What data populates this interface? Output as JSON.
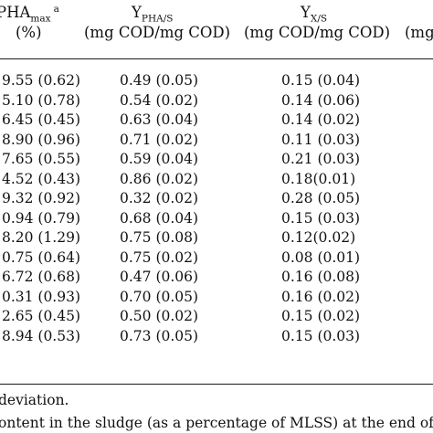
{
  "table": {
    "headers": {
      "col1_main": "PHA",
      "col1_sub": "max",
      "col1_sup": "a",
      "col1_unit": "(%)",
      "col2_main": "Y",
      "col2_sub": "PHA/S",
      "col2_unit": "(mg COD/mg COD)",
      "col3_main": "Y",
      "col3_sub": "X/S",
      "col3_unit": "(mg COD/mg COD)",
      "col4_unit": "(mg"
    },
    "rows": [
      {
        "pha": "9.55 (0.62)",
        "ypha": "0.49 (0.05)",
        "yx": "0.15 (0.04)"
      },
      {
        "pha": "5.10 (0.78)",
        "ypha": "0.54 (0.02)",
        "yx": "0.14 (0.06)"
      },
      {
        "pha": "6.45 (0.45)",
        "ypha": "0.63 (0.04)",
        "yx": "0.14 (0.02)"
      },
      {
        "pha": "8.90 (0.96)",
        "ypha": "0.71 (0.02)",
        "yx": "0.11 (0.03)"
      },
      {
        "pha": "7.65 (0.55)",
        "ypha": "0.59 (0.04)",
        "yx": "0.21 (0.03)"
      },
      {
        "pha": "4.52 (0.43)",
        "ypha": "0.86 (0.02)",
        "yx": "0.18(0.01)"
      },
      {
        "pha": "9.32 (0.92)",
        "ypha": "0.32 (0.02)",
        "yx": "0.28 (0.05)"
      },
      {
        "pha": "0.94 (0.79)",
        "ypha": "0.68 (0.04)",
        "yx": "0.15 (0.03)"
      },
      {
        "pha": "8.20 (1.29)",
        "ypha": "0.75 (0.08)",
        "yx": "0.12(0.02)"
      },
      {
        "pha": "0.75 (0.64)",
        "ypha": "0.75 (0.02)",
        "yx": "0.08 (0.01)"
      },
      {
        "pha": "6.72 (0.68)",
        "ypha": "0.47 (0.06)",
        "yx": "0.16 (0.08)"
      },
      {
        "pha": "0.31 (0.93)",
        "ypha": "0.70 (0.05)",
        "yx": "0.16 (0.02)"
      },
      {
        "pha": "2.65 (0.45)",
        "ypha": "0.50 (0.02)",
        "yx": "0.15 (0.02)"
      },
      {
        "pha": "8.94 (0.53)",
        "ypha": "0.73 (0.05)",
        "yx": "0.15 (0.03)"
      }
    ],
    "footnotes": {
      "line1": "deviation.",
      "line2": "ontent in the sludge (as a percentage of MLSS) at the end of th"
    }
  }
}
